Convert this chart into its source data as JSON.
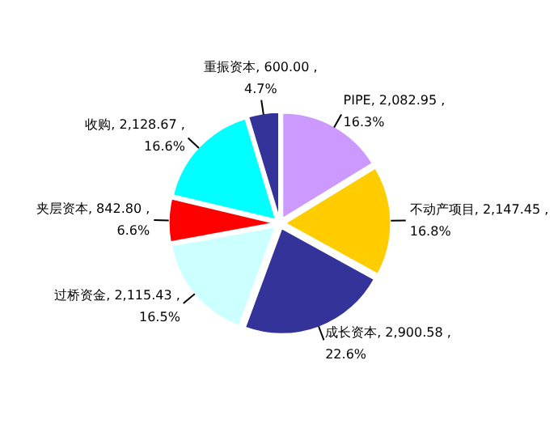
{
  "chart_data": {
    "type": "pie",
    "categories": [
      "PIPE",
      "不动产项目",
      "成长资本",
      "过桥资金",
      "夹层资本",
      "收购",
      "重振资本"
    ],
    "values": [
      2082.95,
      2147.45,
      2900.58,
      2115.43,
      842.8,
      2128.67,
      600.0
    ],
    "colors": [
      "#cc99ff",
      "#ffcc00",
      "#333399",
      "#ccffff",
      "#ff0000",
      "#00ffff",
      "#333399"
    ],
    "value_labels": [
      "2,082.95 , 16.3%",
      "2,147.45 , 16.8%",
      "2,900.58 , 22.6%",
      "2,115.43 , 16.5%",
      "842.80 , 6.6%",
      "2,128.67 , 16.6%",
      "600.00 , 4.7%"
    ]
  }
}
